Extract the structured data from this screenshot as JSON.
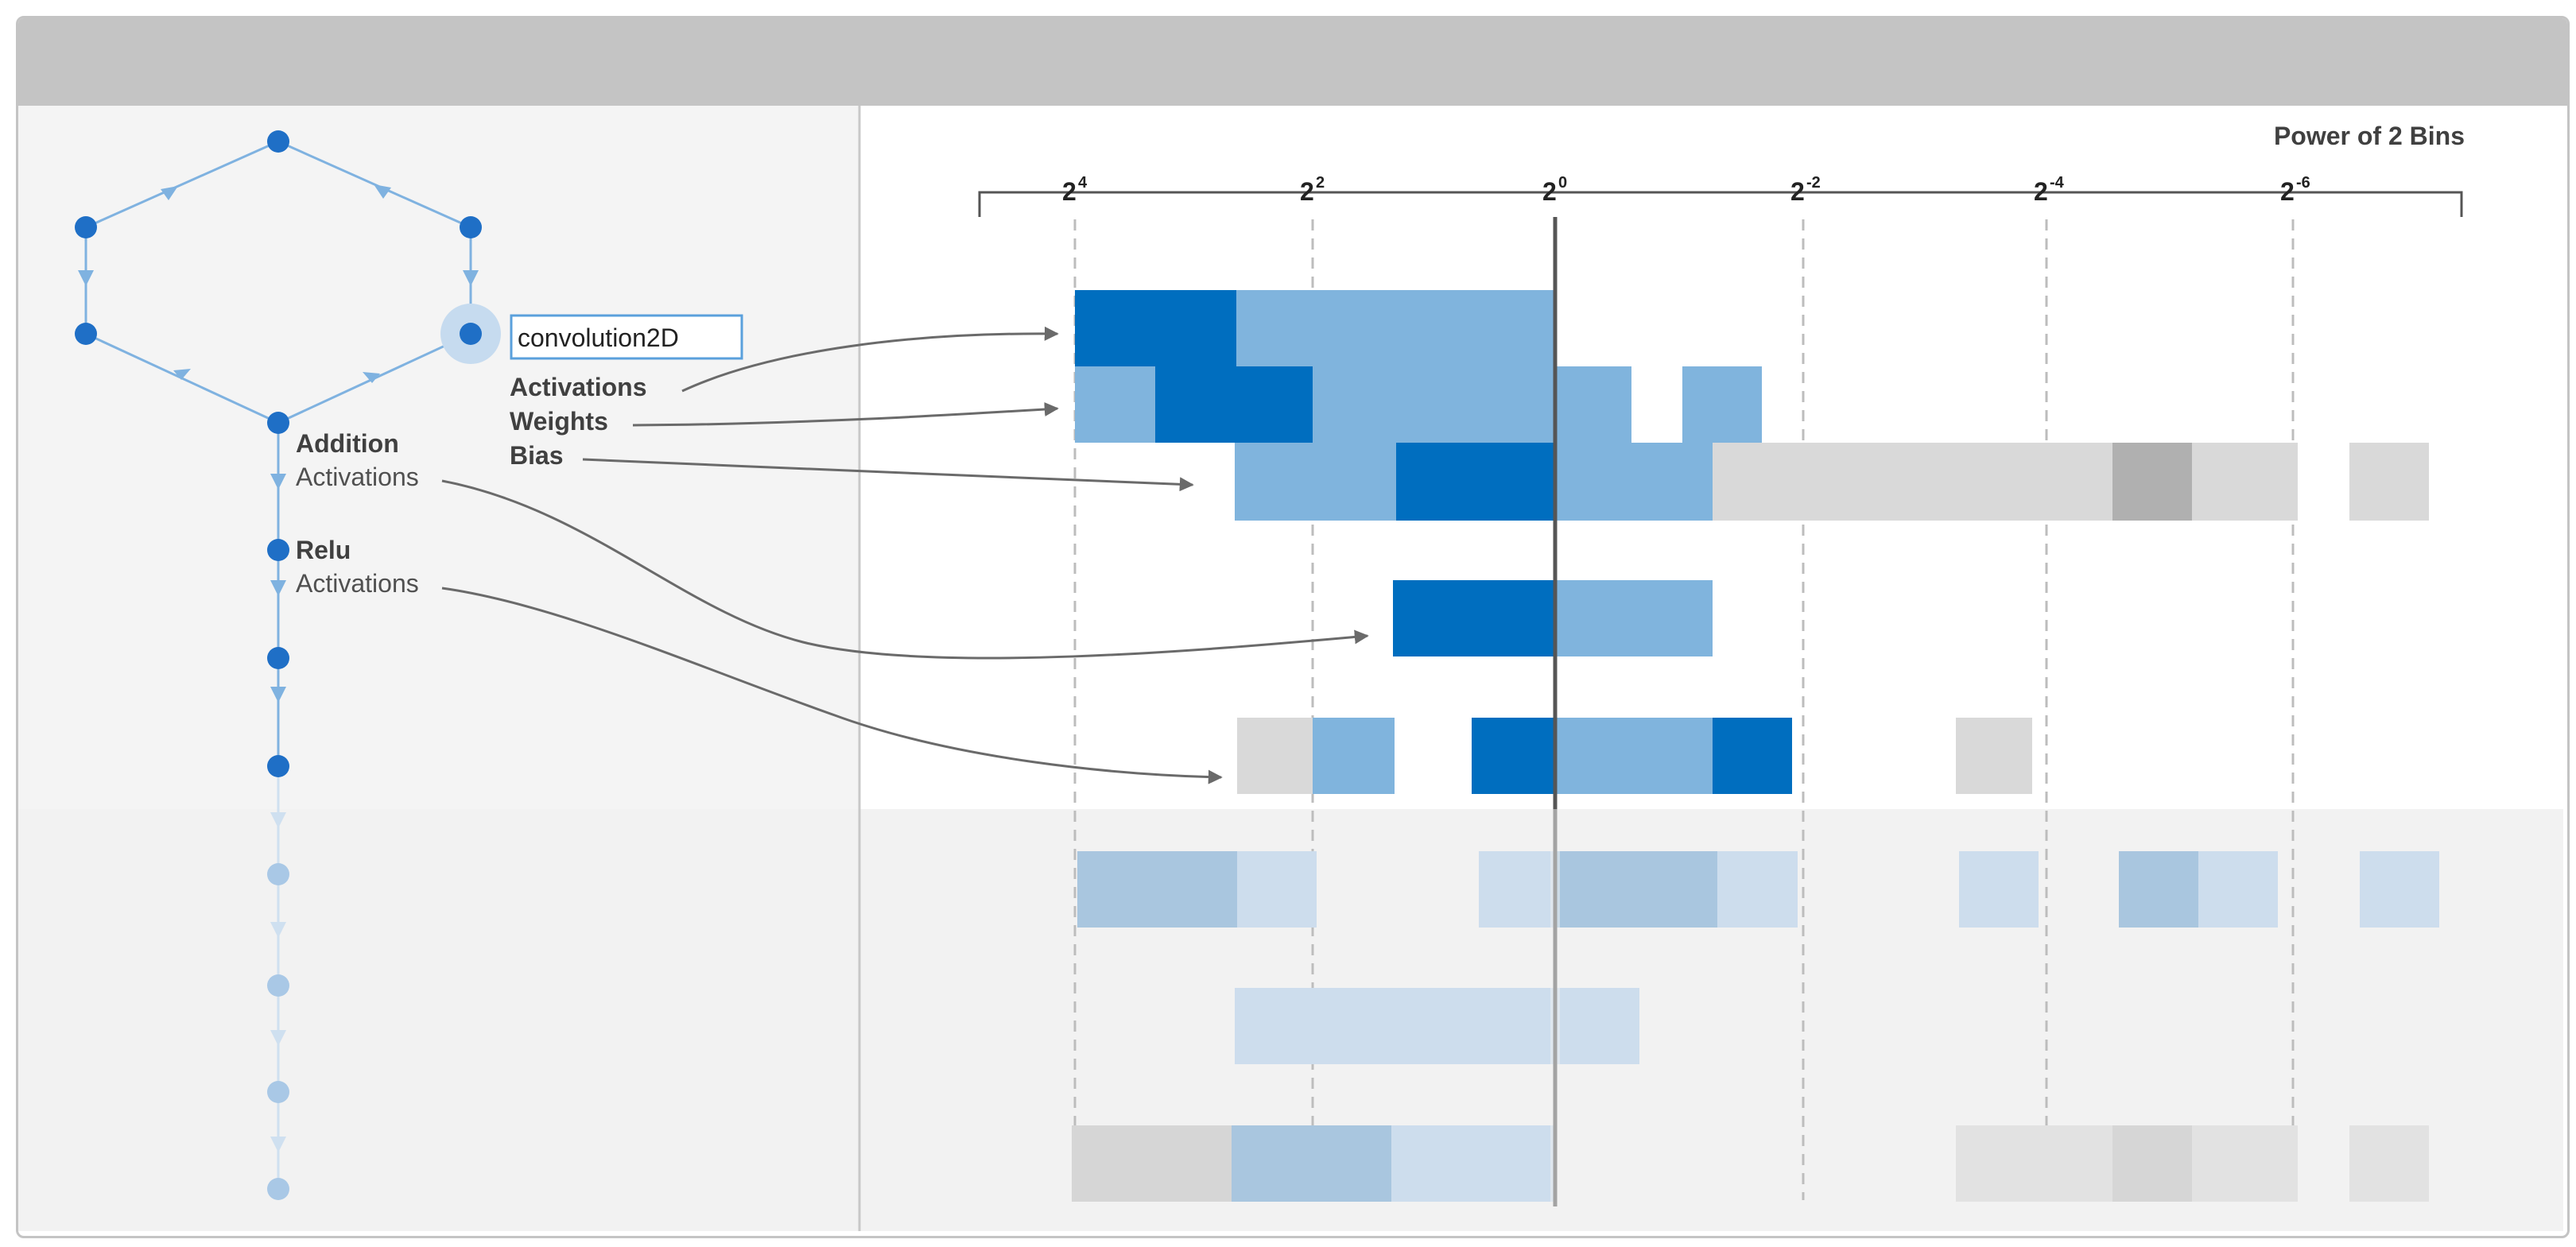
{
  "axis": {
    "title": "Power of 2 Bins",
    "ticks": [
      {
        "base": "2",
        "exp": "4"
      },
      {
        "base": "2",
        "exp": "2"
      },
      {
        "base": "2",
        "exp": "0"
      },
      {
        "base": "2",
        "exp": "-2"
      },
      {
        "base": "2",
        "exp": "-4"
      },
      {
        "base": "2",
        "exp": "-6"
      }
    ]
  },
  "network": {
    "selected_layer": "convolution2D",
    "labels": {
      "conv_activations": "Activations",
      "conv_weights": "Weights",
      "conv_bias": "Bias",
      "addition_title": "Addition",
      "addition_activations": "Activations",
      "relu_title": "Relu",
      "relu_activations": "Activations"
    }
  },
  "colors": {
    "titlebar": "#c4c4c4",
    "left_panel": "#f4f4f4",
    "dark_blue": "#006ebf",
    "light_blue": "#80b4dd",
    "gray": "#d9d9d9",
    "dark_gray": "#b0b0b0",
    "node_blue": "#1f6fc6",
    "edge_blue": "#7fb2e0"
  }
}
